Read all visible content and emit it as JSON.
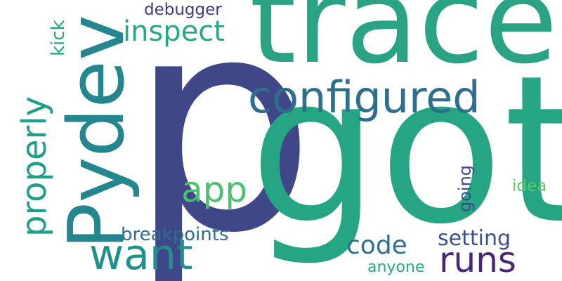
{
  "words": {
    "p": "p",
    "got": "got",
    "trace": "trace",
    "pydev": "Pydev",
    "configured": "configured",
    "properly": "properly",
    "inspect": "inspect",
    "debugger": "debugger",
    "kick": "kick",
    "app": "app",
    "want": "want",
    "breakpoints": "breakpoints",
    "code": "code",
    "setting": "setting",
    "runs": "runs",
    "anyone": "anyone",
    "going": "going",
    "idea": "idea"
  },
  "colors": {
    "background": "#ffffff",
    "palette": [
      "#3f4788",
      "#25a584",
      "#29a383",
      "#24868e",
      "#2e6f8e",
      "#1f9e89",
      "#27a884",
      "#453781",
      "#22a785",
      "#4ac16d",
      "#21908d",
      "#2f6c8e",
      "#2c728e",
      "#3c4f8a",
      "#482777",
      "#25ac82",
      "#3e4a89",
      "#5cc863"
    ]
  }
}
